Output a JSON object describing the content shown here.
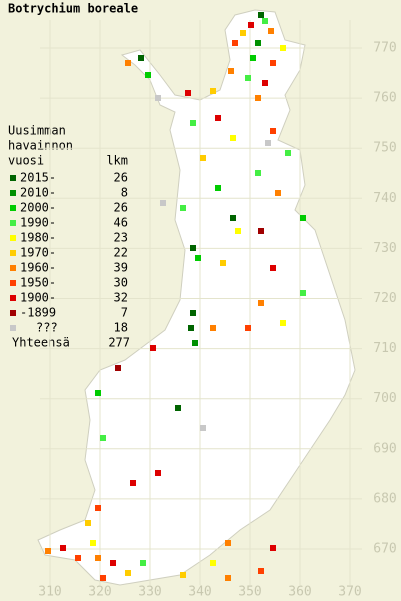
{
  "title": "Botrychium boreale",
  "legend": {
    "heading": [
      "Uusimman",
      "havainnon"
    ],
    "subheading": "vuosi",
    "count_heading": "lkm",
    "entries": [
      {
        "label": "2015-",
        "count": 26,
        "color": "#006400"
      },
      {
        "label": "2010-",
        "count": 8,
        "color": "#009000"
      },
      {
        "label": "2000-",
        "count": 26,
        "color": "#00cc00"
      },
      {
        "label": "1990-",
        "count": 46,
        "color": "#44ee44"
      },
      {
        "label": "1980-",
        "count": 23,
        "color": "#ffff00"
      },
      {
        "label": "1970-",
        "count": 22,
        "color": "#ffcc00"
      },
      {
        "label": "1960-",
        "count": 39,
        "color": "#ff8000"
      },
      {
        "label": "1950-",
        "count": 30,
        "color": "#ff4000"
      },
      {
        "label": "1900-",
        "count": 32,
        "color": "#dd0000"
      },
      {
        "label": "-1899",
        "count": 7,
        "color": "#a00000"
      },
      {
        "label": "???",
        "count": 18,
        "color": "#c8c8c8"
      }
    ],
    "total_label": "Yhteensä",
    "total": 277
  },
  "grid": {
    "x_labels": [
      310,
      320,
      330,
      340,
      350,
      360,
      370
    ],
    "y_labels": [
      770,
      760,
      750,
      740,
      730,
      720,
      710,
      700,
      690,
      680,
      670
    ]
  }
}
